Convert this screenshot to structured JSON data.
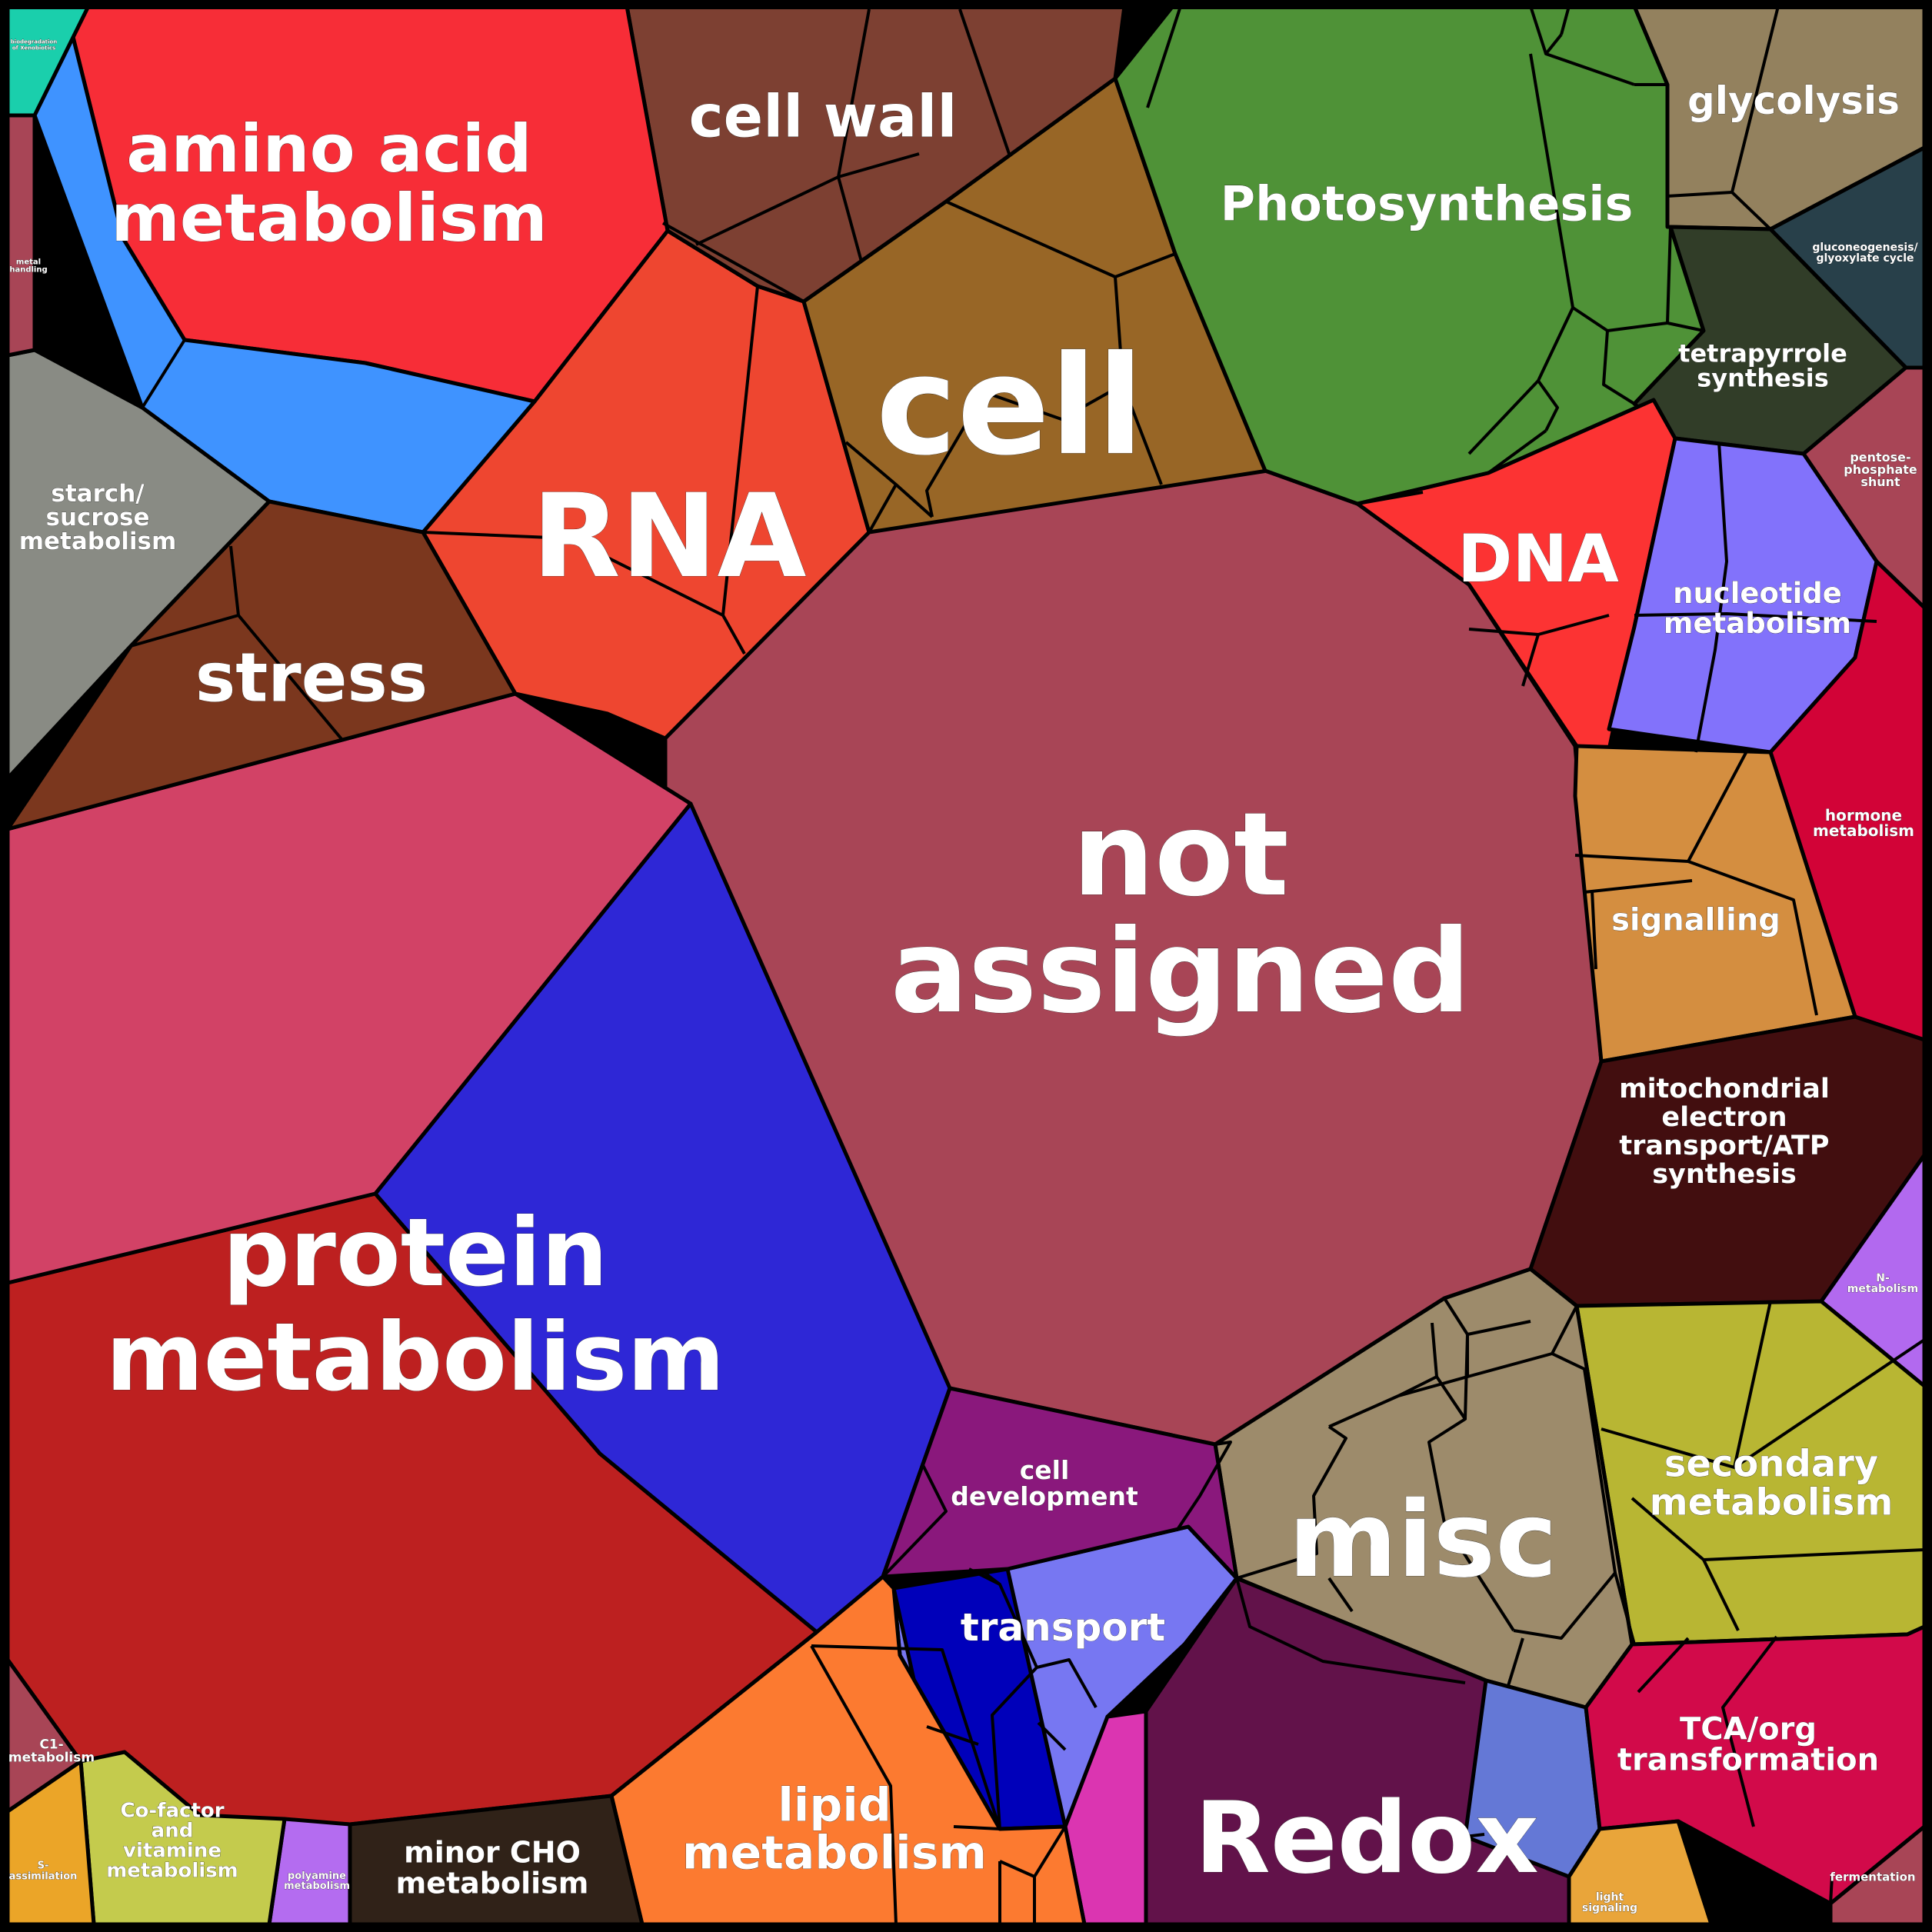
{
  "diagram": {
    "type": "voronoi-treemap",
    "categories": [
      {
        "id": "not-assigned",
        "lines": [
          "not",
          "assigned"
        ],
        "color": "#A84556"
      },
      {
        "id": "protein-metabolism",
        "lines": [
          "protein",
          "metabolism"
        ],
        "color": "#BD2020"
      },
      {
        "id": "rna",
        "lines": [
          "RNA"
        ],
        "color": "#EE4630"
      },
      {
        "id": "cell",
        "lines": [
          "cell"
        ],
        "color": "#986626"
      },
      {
        "id": "misc",
        "lines": [
          "misc"
        ],
        "color": "#9D8B6B"
      },
      {
        "id": "redox",
        "lines": [
          "Redox"
        ],
        "color": "#62124A"
      },
      {
        "id": "amino-acid-metabolism",
        "lines": [
          "amino acid",
          "metabolism"
        ],
        "color": "#F72D37"
      },
      {
        "id": "photosynthesis",
        "lines": [
          "Photosynthesis"
        ],
        "color": "#4F9237"
      },
      {
        "id": "cell-wall",
        "lines": [
          "cell wall"
        ],
        "color": "#7D4032"
      },
      {
        "id": "stress",
        "lines": [
          "stress"
        ],
        "color": "#7B371E"
      },
      {
        "id": "dna",
        "lines": [
          "DNA"
        ],
        "color": "#FC3333"
      },
      {
        "id": "lipid-metabolism",
        "lines": [
          "lipid",
          "metabolism"
        ],
        "color": "#FC7A30"
      },
      {
        "id": "transport",
        "lines": [
          "transport"
        ],
        "color": "#7777F2"
      },
      {
        "id": "cell-development",
        "lines": [
          "cell",
          "development"
        ],
        "color": "#8A187C"
      },
      {
        "id": "secondary-metabolism",
        "lines": [
          "secondary",
          "metabolism"
        ],
        "color": "#B8B633"
      },
      {
        "id": "signalling",
        "lines": [
          "signalling"
        ],
        "color": "#D48E40"
      },
      {
        "id": "nucleotide-metabolism",
        "lines": [
          "nucleotide",
          "metabolism"
        ],
        "color": "#8272FB"
      },
      {
        "id": "mitochondrial-electron-transport",
        "lines": [
          "mitochondrial",
          "electron",
          "transport/ATP",
          "synthesis"
        ],
        "color": "#420E0F"
      },
      {
        "id": "tca-org-transformation",
        "lines": [
          "TCA/org",
          "transformation"
        ],
        "color": "#D20A4A"
      },
      {
        "id": "glycolysis",
        "lines": [
          "glycolysis"
        ],
        "color": "#93815E"
      },
      {
        "id": "tetrapyrrole-synthesis",
        "lines": [
          "tetrapyrrole",
          "synthesis"
        ],
        "color": "#313D28"
      },
      {
        "id": "starch-sucrose-metabolism",
        "lines": [
          "starch/",
          "sucrose",
          "metabolism"
        ],
        "color": "#898B84"
      },
      {
        "id": "minor-cho-metabolism",
        "lines": [
          "minor CHO",
          "metabolism"
        ],
        "color": "#302218"
      },
      {
        "id": "cofactor-vitamine-metabolism",
        "lines": [
          "Co-factor",
          "and",
          "vitamine",
          "metabolism"
        ],
        "color": "#C4CB4D"
      },
      {
        "id": "hormone-metabolism",
        "lines": [
          "hormone",
          "metabolism"
        ],
        "color": "#D20337"
      },
      {
        "id": "pentose-phosphate-shunt",
        "lines": [
          "pentose-",
          "phosphate",
          "shunt"
        ],
        "color": "#A84556"
      },
      {
        "id": "gluconeogenesis",
        "lines": [
          "gluconeogenesis/",
          "glyoxylate cycle"
        ],
        "color": "#28404A"
      },
      {
        "id": "n-metabolism",
        "lines": [
          "N-",
          "metabolism"
        ],
        "color": "#B269EF"
      },
      {
        "id": "c1-metabolism",
        "lines": [
          "C1-",
          "metabolism"
        ],
        "color": "#A84556"
      },
      {
        "id": "s-assimilation",
        "lines": [
          "S-",
          "assimilation"
        ],
        "color": "#EBA528"
      },
      {
        "id": "polyamine-metabolism",
        "lines": [
          "polyamine",
          "metabolism"
        ],
        "color": "#B46CF0"
      },
      {
        "id": "metal-handling",
        "lines": [
          "metal",
          "handling"
        ],
        "color": "#A84556"
      },
      {
        "id": "biodegradation",
        "lines": [
          "biodegradation",
          "of Xenobiotics"
        ],
        "color": "#1ACFAC"
      },
      {
        "id": "fermentation",
        "lines": [
          "fermentation"
        ],
        "color": "#A84556"
      },
      {
        "id": "light-signaling",
        "lines": [
          "light",
          "signaling"
        ],
        "color": "#E9A53A"
      },
      {
        "id": "blue-tone",
        "lines": [],
        "color": "#3F93FF"
      },
      {
        "id": "pink-tone",
        "lines": [],
        "color": "#D24266"
      },
      {
        "id": "violet-tone",
        "lines": [],
        "color": "#2E27D6"
      },
      {
        "id": "redox-magenta",
        "lines": [],
        "color": "#DB35B1"
      },
      {
        "id": "redox-blue",
        "lines": [],
        "color": "#6478D6"
      },
      {
        "id": "transport-dark",
        "lines": [],
        "color": "#0000BA"
      }
    ]
  }
}
